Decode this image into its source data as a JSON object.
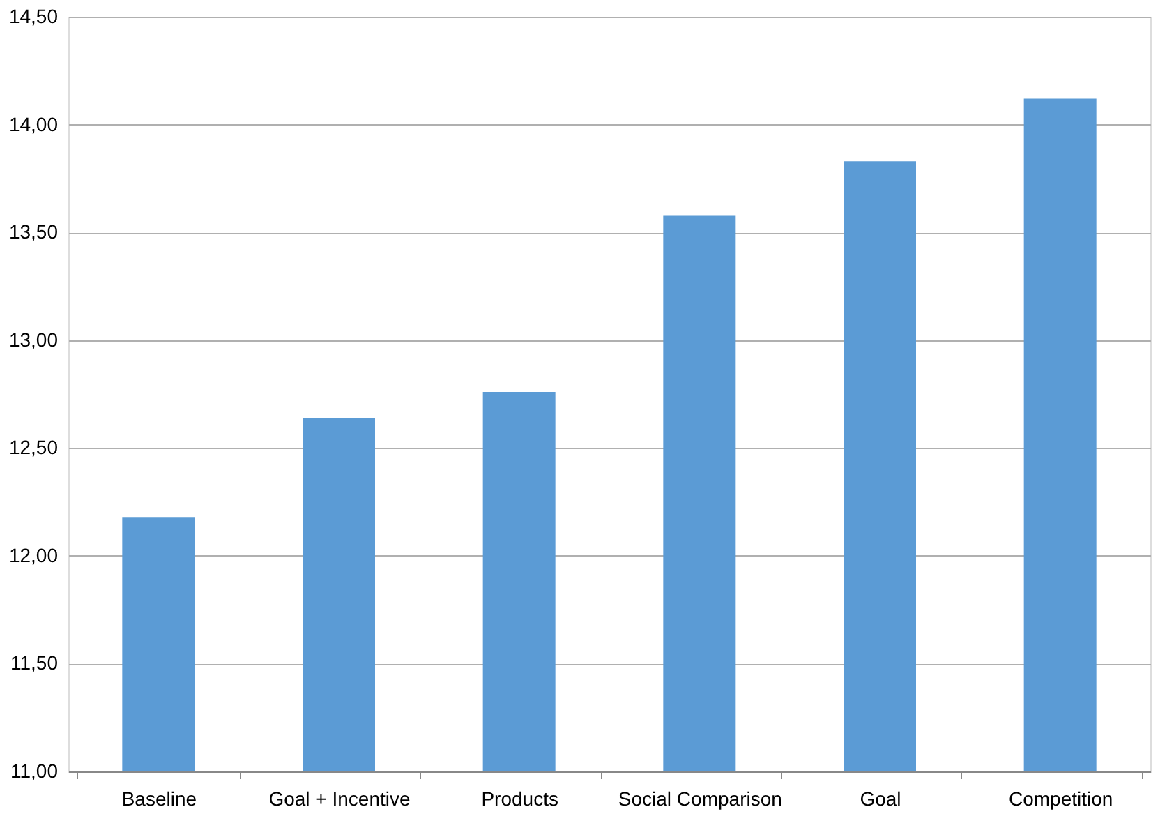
{
  "chart_data": {
    "type": "bar",
    "categories": [
      "Baseline",
      "Goal + Incentive",
      "Products",
      "Social Comparison",
      "Goal",
      "Competition"
    ],
    "values": [
      12.18,
      12.64,
      12.76,
      13.58,
      13.83,
      14.12
    ],
    "color": "#5b9bd5",
    "ylim": [
      11.0,
      14.5
    ],
    "yticks": [
      {
        "value": 11.0,
        "label": "11,00"
      },
      {
        "value": 11.5,
        "label": "11,50"
      },
      {
        "value": 12.0,
        "label": "12,00"
      },
      {
        "value": 12.5,
        "label": "12,50"
      },
      {
        "value": 13.0,
        "label": "13,00"
      },
      {
        "value": 13.5,
        "label": "13,50"
      },
      {
        "value": 14.0,
        "label": "14,00"
      },
      {
        "value": 14.5,
        "label": "14,50"
      }
    ],
    "grid": "y",
    "legend": false
  }
}
